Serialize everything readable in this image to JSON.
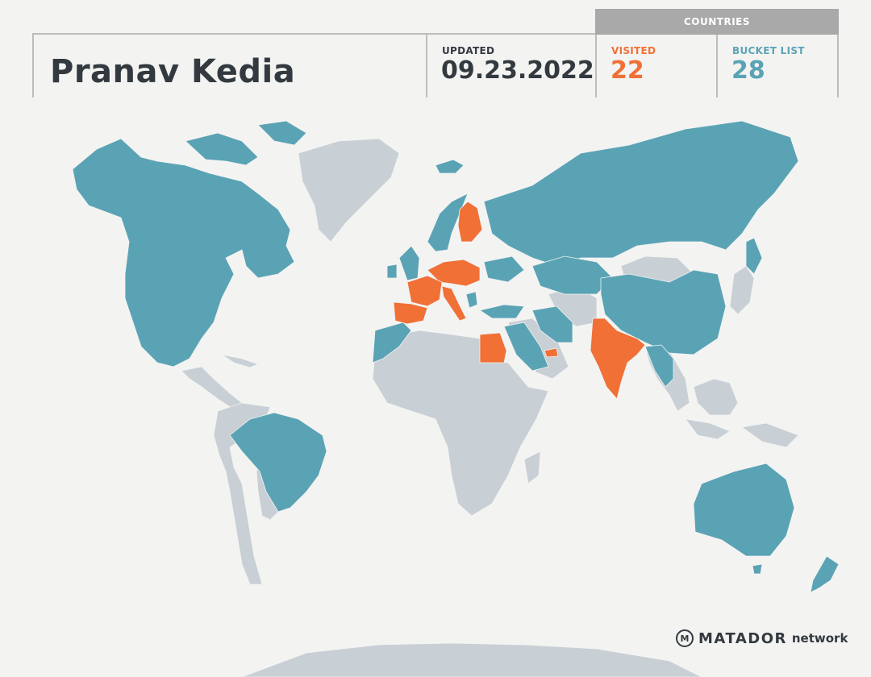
{
  "profile": {
    "name": "Pranav Kedia"
  },
  "updated": {
    "label": "UPDATED",
    "date": "09.23.2022"
  },
  "countries": {
    "header": "COUNTRIES",
    "visited": {
      "label": "VISITED",
      "count": "22",
      "color": "#f07036"
    },
    "bucket_list": {
      "label": "BUCKET LIST",
      "count": "28",
      "color": "#5aa3b5"
    }
  },
  "map": {
    "colors": {
      "visited": "#f07036",
      "bucket_list": "#5aa3b5",
      "other": "#c8cfd5",
      "background": "#f3f3f2"
    },
    "visited_regions": [
      "France",
      "Spain",
      "Portugal",
      "Italy",
      "Germany",
      "Switzerland",
      "Austria",
      "Czechia",
      "Poland",
      "Hungary",
      "Finland",
      "Egypt",
      "United Arab Emirates",
      "Qatar",
      "Bahrain",
      "India",
      "Nepal",
      "Malta",
      "Slovenia",
      "Croatia",
      "Netherlands",
      "Belgium"
    ],
    "bucket_list_regions": [
      "Canada",
      "United States",
      "Mexico",
      "Alaska",
      "Greenland-excluded",
      "Brazil",
      "Russia",
      "China",
      "Mongolia",
      "Japan",
      "Australia",
      "Iran",
      "Turkey",
      "Saudi Arabia",
      "Morocco",
      "Norway",
      "Sweden",
      "United Kingdom",
      "Ireland",
      "Iceland",
      "Kazakhstan",
      "Myanmar",
      "Thailand",
      "Vietnam",
      "Greece",
      "Ukraine",
      "New Zealand",
      "Western Sahara"
    ]
  },
  "logo": {
    "icon_name": "matador-m-icon",
    "brand": "MATADOR",
    "suffix": "network"
  }
}
